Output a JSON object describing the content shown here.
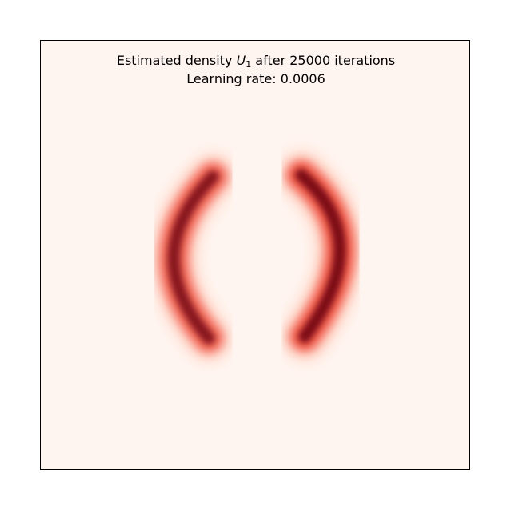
{
  "chart_data": {
    "type": "heatmap",
    "title": {
      "prefix": "Estimated density ",
      "symbol": "U",
      "subscript": "1",
      "suffix": " after 25000 iterations"
    },
    "subtitle": "Learning rate: 0.0006",
    "xlabel": "",
    "ylabel": "",
    "colormap": "Reds",
    "colors": {
      "background": "#fff5f0",
      "low": "#fcbba1",
      "mid": "#ef3b2c",
      "high": "#67000d"
    },
    "axes_ticks": "none",
    "grid": false,
    "legend": "none",
    "density": {
      "shape": "two crescent arcs",
      "components": [
        {
          "name": "left-arc",
          "peak_intensity": 0.9
        },
        {
          "name": "right-arc",
          "peak_intensity": 1.0
        }
      ]
    }
  }
}
